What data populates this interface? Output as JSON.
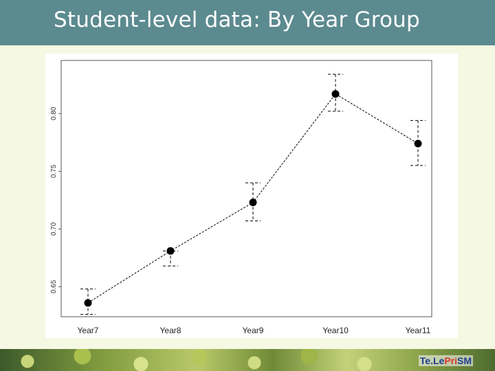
{
  "header": {
    "title": "Student-level data: By Year Group"
  },
  "footer": {
    "brand_prefix": "Te.Le",
    "brand_highlight": "Pri",
    "brand_suffix": "SM"
  },
  "chart_data": {
    "type": "line",
    "title": "",
    "xlabel": "",
    "ylabel": "",
    "categories": [
      "Year7",
      "Year8",
      "Year9",
      "Year10",
      "Year11"
    ],
    "series": [
      {
        "values": [
          0.636,
          0.681,
          0.723,
          0.817,
          0.774
        ],
        "error_low": [
          0.626,
          0.668,
          0.707,
          0.802,
          0.755
        ],
        "error_high": [
          0.648,
          0.681,
          0.74,
          0.834,
          0.794
        ]
      }
    ],
    "yticks": [
      "0.65",
      "0.70",
      "0.75",
      "0.80"
    ],
    "ylim": [
      0.624,
      0.846
    ],
    "grid": false,
    "legend": "none",
    "colors": {
      "line": "#000000",
      "point": "#000000",
      "axis": "#555555"
    }
  }
}
